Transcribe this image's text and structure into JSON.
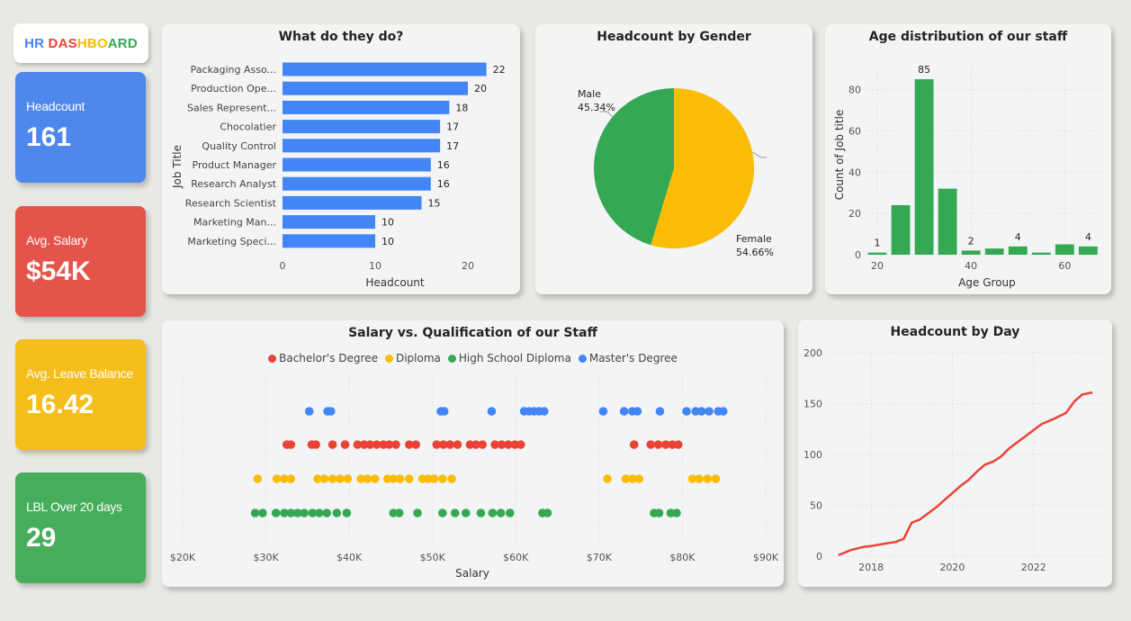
{
  "dashboard": {
    "title_parts": [
      {
        "text": "HR ",
        "color": "#4285f4"
      },
      {
        "text": "DAS",
        "color": "#ea4335"
      },
      {
        "text": "HBO",
        "color": "#fbbc05"
      },
      {
        "text": "ARD",
        "color": "#34a853"
      }
    ]
  },
  "kpis": [
    {
      "label": "Headcount",
      "value": "161",
      "color": "#4e88ec"
    },
    {
      "label": "Avg. Salary",
      "value": "$54K",
      "color": "#e5544b"
    },
    {
      "label": "Avg. Leave Balance",
      "value": "16.42",
      "color": "#f5be1b"
    },
    {
      "label": "LBL Over 20 days",
      "value": "29",
      "color": "#46ad5a"
    }
  ],
  "charts": {
    "jobs": {
      "title": "What do they do?",
      "chart_data": {
        "type": "bar",
        "orientation": "horizontal",
        "categories": [
          "Packaging Asso...",
          "Production Ope...",
          "Sales Represent...",
          "Chocolatier",
          "Quality Control",
          "Product Manager",
          "Research Analyst",
          "Research Scientist",
          "Marketing Man...",
          "Marketing Speci..."
        ],
        "values": [
          22,
          20,
          18,
          17,
          17,
          16,
          16,
          15,
          10,
          10
        ],
        "xlabel": "Headcount",
        "ylabel": "Job Title",
        "xticks": [
          "0",
          "10",
          "20"
        ],
        "xlim": [
          0,
          25
        ],
        "color": "#4285f4"
      }
    },
    "gender": {
      "title": "Headcount by Gender",
      "chart_data": {
        "type": "pie",
        "slices": [
          {
            "label": "Female",
            "value": 54.66,
            "pct_label": "54.66%",
            "color": "#fbbc05"
          },
          {
            "label": "Male",
            "value": 45.34,
            "pct_label": "45.34%",
            "color": "#34a853"
          }
        ]
      }
    },
    "age": {
      "title": "Age distribution of our staff",
      "chart_data": {
        "type": "bar",
        "x": [
          20,
          25,
          30,
          35,
          40,
          45,
          50,
          55,
          60,
          65
        ],
        "values": [
          1,
          24,
          85,
          32,
          2,
          3,
          4,
          1,
          5,
          4
        ],
        "data_labels": [
          {
            "index": 0,
            "text": "1"
          },
          {
            "index": 2,
            "text": "85"
          },
          {
            "index": 4,
            "text": "2"
          },
          {
            "index": 6,
            "text": "4"
          },
          {
            "index": 9,
            "text": "4"
          }
        ],
        "xlabel": "Age Group",
        "ylabel": "Count of Job title",
        "xticks": [
          20,
          40,
          60
        ],
        "yticks": [
          0,
          20,
          40,
          60,
          80
        ],
        "xlim": [
          17.5,
          68
        ],
        "ylim": [
          0,
          92
        ],
        "grid": true,
        "color": "#34a853"
      }
    },
    "salary": {
      "title": "Salary vs. Qualification of our Staff",
      "chart_data": {
        "type": "scatter",
        "xlabel": "Salary",
        "xticks": [
          "$20K",
          "$30K",
          "$40K",
          "$50K",
          "$60K",
          "$70K",
          "$80K",
          "$90K"
        ],
        "xtick_values": [
          20,
          30,
          40,
          50,
          60,
          70,
          80,
          90
        ],
        "xlim": [
          20,
          90
        ],
        "legend_position": "top",
        "series": [
          {
            "name": "Bachelor's Degree",
            "color": "#ea4335",
            "values": [
              32.5,
              33.0,
              35.5,
              36.0,
              38.0,
              39.5,
              41.0,
              41.8,
              42.5,
              43.3,
              44.1,
              44.8,
              45.6,
              47.2,
              48.0,
              50.5,
              51.3,
              52.1,
              53.0,
              54.5,
              55.2,
              56.0,
              57.5,
              58.3,
              59.1,
              59.9,
              60.6,
              74.2,
              76.2,
              77.1,
              78.0,
              78.8,
              79.5
            ]
          },
          {
            "name": "Diploma",
            "color": "#fbbc05",
            "values": [
              29.0,
              31.3,
              32.2,
              33.0,
              36.2,
              37.0,
              38.0,
              38.9,
              39.8,
              41.4,
              42.2,
              43.1,
              44.6,
              45.3,
              46.1,
              47.2,
              48.8,
              49.5,
              50.2,
              51.2,
              52.3,
              71.0,
              73.2,
              74.0,
              74.8,
              81.2,
              82.0,
              83.0,
              84.0
            ]
          },
          {
            "name": "High School Diploma",
            "color": "#34a853",
            "values": [
              28.7,
              29.6,
              31.2,
              32.2,
              33.0,
              33.8,
              34.6,
              35.6,
              36.4,
              37.3,
              38.5,
              39.7,
              45.3,
              46.0,
              48.2,
              51.2,
              52.7,
              54.0,
              55.8,
              57.2,
              58.2,
              59.3,
              63.2,
              63.8,
              76.6,
              77.2,
              78.6,
              79.3
            ]
          },
          {
            "name": "Master's Degree",
            "color": "#4285f4",
            "values": [
              35.2,
              37.4,
              37.8,
              51.0,
              51.4,
              57.1,
              61.0,
              61.6,
              62.2,
              62.8,
              63.4,
              70.5,
              73.0,
              74.0,
              74.6,
              77.3,
              80.5,
              81.6,
              82.3,
              83.2,
              84.3,
              84.9
            ]
          }
        ]
      }
    },
    "day": {
      "title": "Headcount by Day",
      "chart_data": {
        "type": "line",
        "x": [
          2017.2,
          2017.5,
          2017.8,
          2018.0,
          2018.3,
          2018.6,
          2018.8,
          2018.9,
          2019.0,
          2019.2,
          2019.4,
          2019.6,
          2019.8,
          2020.0,
          2020.2,
          2020.4,
          2020.6,
          2020.8,
          2021.0,
          2021.2,
          2021.4,
          2021.6,
          2021.8,
          2022.0,
          2022.2,
          2022.5,
          2022.8,
          2023.0,
          2023.2,
          2023.45
        ],
        "values": [
          1,
          6,
          9,
          10,
          12,
          14,
          17,
          25,
          33,
          36,
          42,
          48,
          55,
          62,
          69,
          75,
          83,
          90,
          93,
          98,
          106,
          112,
          118,
          124,
          130,
          135,
          141,
          152,
          159,
          161
        ],
        "xticks": [
          2018,
          2020,
          2022
        ],
        "yticks": [
          0,
          50,
          100,
          150,
          200
        ],
        "xlim": [
          2017.0,
          2023.8
        ],
        "ylim": [
          0,
          200
        ],
        "grid": true,
        "color": "#ea4335"
      }
    }
  }
}
